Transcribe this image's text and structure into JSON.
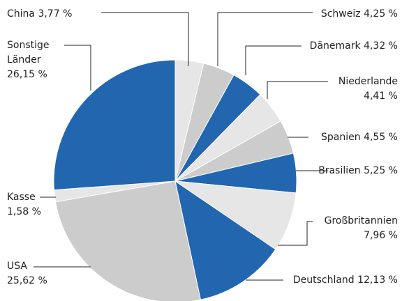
{
  "chart_data": {
    "type": "pie",
    "categories": [
      "China",
      "Schweiz",
      "Dänemark",
      "Niederlande",
      "Spanien",
      "Brasilien",
      "Großbritannien",
      "Deutschland",
      "USA",
      "Kasse",
      "Sonstige Länder"
    ],
    "values": [
      3.77,
      4.25,
      4.32,
      4.41,
      4.55,
      5.25,
      7.96,
      12.13,
      25.62,
      1.58,
      26.15
    ],
    "value_labels": [
      "3,77 %",
      "4,25 %",
      "4,32 %",
      "4,41 %",
      "4,55 %",
      "5,25 %",
      "7,96 %",
      "12,13 %",
      "25,62 %",
      "1,58 %",
      "26,15 %"
    ],
    "colors": [
      "#e6e6e6",
      "#cccccc",
      "#2266b0",
      "#e6e6e6",
      "#cccccc",
      "#2266b0",
      "#e6e6e6",
      "#2266b0",
      "#cccccc",
      "#e6e6e6",
      "#2266b0"
    ]
  }
}
